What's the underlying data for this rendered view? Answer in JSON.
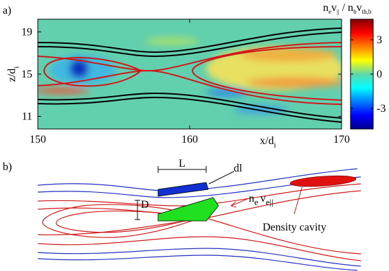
{
  "panel_a": {
    "label": "a)",
    "xlim": [
      150,
      170
    ],
    "xticks": [
      150,
      160,
      170
    ],
    "xlabel": [
      [
        "x/d",
        "i"
      ]
    ],
    "ylim": [
      9.8,
      20.2
    ],
    "yticks": [
      11,
      15,
      19
    ],
    "ylabel": [
      [
        "z/d",
        "i"
      ]
    ],
    "colorbar": {
      "lim": [
        -4.8,
        4.8
      ],
      "ticks": [
        -3,
        0,
        3
      ],
      "label": [
        [
          "n",
          "e"
        ],
        [
          "v",
          "||"
        ],
        [
          " / n",
          "b"
        ],
        [
          "v",
          "th,b"
        ]
      ]
    }
  },
  "panel_b": {
    "label": "b)",
    "length_label": "L",
    "element_label": "dl",
    "width_label": "D",
    "flow_label": [
      [
        "n",
        "e"
      ],
      [
        "v",
        "e||"
      ]
    ],
    "cavity_label": "Density cavity"
  }
}
